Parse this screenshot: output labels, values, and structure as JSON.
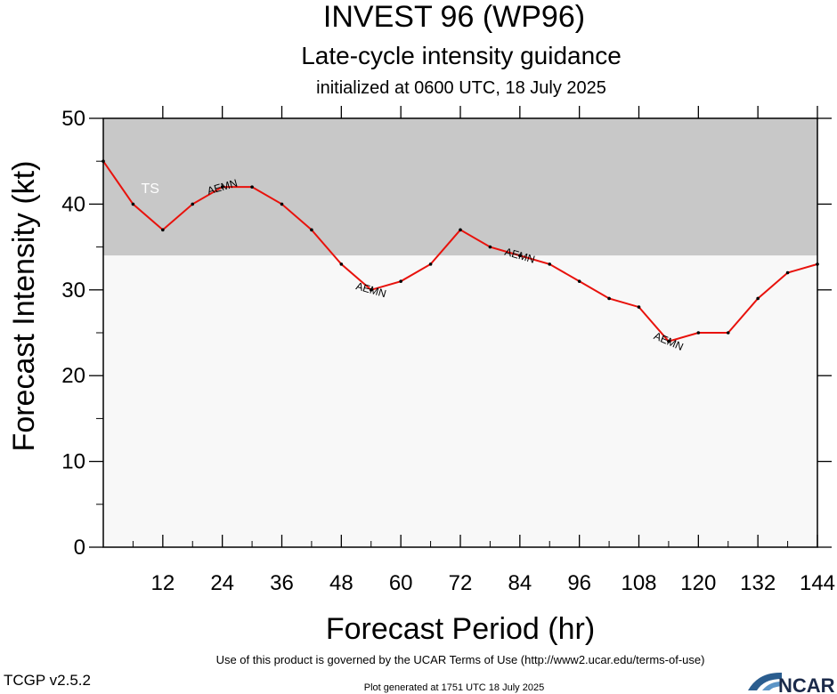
{
  "header": {
    "title": "INVEST 96 (WP96)",
    "subtitle": "Late-cycle intensity guidance",
    "init": "initialized at 0600 UTC, 18 July 2025"
  },
  "footer": {
    "terms": "Use of this product is governed by the UCAR Terms of Use (http://www2.ucar.edu/terms-of-use)",
    "version": "TCGP v2.5.2",
    "generated": "Plot generated at 1751 UTC   18 July 2025",
    "logo_text": "NCAR"
  },
  "chart_data": {
    "type": "line",
    "xlabel": "Forecast Period (hr)",
    "ylabel": "Forecast Intensity (kt)",
    "xlim": [
      0,
      144
    ],
    "ylim": [
      0,
      50
    ],
    "x_ticks": [
      12,
      24,
      36,
      48,
      60,
      72,
      84,
      96,
      108,
      120,
      132,
      144
    ],
    "y_ticks": [
      0,
      10,
      20,
      30,
      40,
      50
    ],
    "grid": false,
    "zones": [
      {
        "label": "TS",
        "from": 34,
        "to": 50,
        "color": "#c8c8c8"
      },
      {
        "label": "",
        "from": 0,
        "to": 34,
        "color": "#f8f8f8"
      }
    ],
    "series": [
      {
        "name": "AEMN",
        "color": "#e8120c",
        "x": [
          0,
          6,
          12,
          18,
          24,
          30,
          36,
          42,
          48,
          54,
          60,
          66,
          72,
          78,
          84,
          90,
          96,
          102,
          108,
          114,
          120,
          126,
          132,
          138,
          144
        ],
        "values": [
          45,
          40,
          37,
          40,
          42,
          42,
          40,
          37,
          33,
          30,
          31,
          33,
          37,
          35,
          34,
          33,
          31,
          29,
          28,
          24,
          25,
          25,
          29,
          32,
          33
        ],
        "label_at_x": [
          24,
          54,
          84,
          114
        ]
      }
    ]
  }
}
